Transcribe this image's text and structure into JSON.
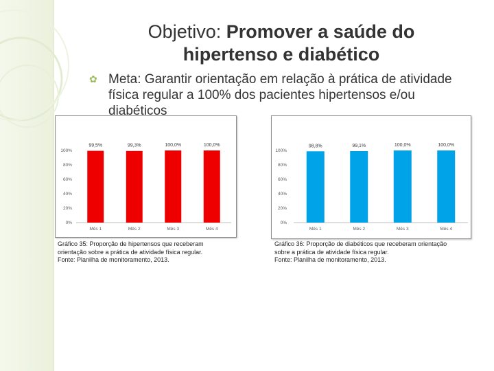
{
  "slide": {
    "title_lead": "Objetivo: ",
    "title_bold_1": "Promover a saúde do",
    "title_bold_2": "hipertenso e diabético",
    "bullet_line_1": "Meta: Garantir orientação em relação à prática de atividade",
    "bullet_line_2": "física regular a 100% dos pacientes hipertensos e/ou",
    "bullet_line_3": "diabéticos"
  },
  "captions": [
    {
      "line_1": "Gráfico 35: Proporção de hipertensos que receberam",
      "line_2": "orientação sobre a prática de atividade física regular.",
      "line_3": "Fonte: Planilha de monitoramento, 2013."
    },
    {
      "line_1": "Gráfico 36: Proporção de diabéticos que receberam orientação",
      "line_2": "sobre a prática de atividade física regular.",
      "line_3": "Fonte: Planilha de monitoramento, 2013."
    }
  ],
  "colors": {
    "accent": "#9bbb59",
    "bar_red": "#ee0000",
    "bar_blue": "#00a2e8"
  },
  "chart_data": [
    {
      "type": "bar",
      "categories": [
        "Mês 1",
        "Mês 2",
        "Mês 3",
        "Mês 4"
      ],
      "values": [
        99.5,
        99.3,
        100.0,
        100.0
      ],
      "data_labels": [
        "99,5%",
        "99,3%",
        "100,0%",
        "100,0%"
      ],
      "yticks": [
        "0%",
        "20%",
        "40%",
        "60%",
        "80%",
        "100%"
      ],
      "ylim": [
        0,
        100
      ],
      "grid": false,
      "legend": "none",
      "color": "#ee0000"
    },
    {
      "type": "bar",
      "categories": [
        "Mês 1",
        "Mês 2",
        "Mês 3",
        "Mês 4"
      ],
      "values": [
        98.8,
        99.1,
        100.0,
        100.0
      ],
      "data_labels": [
        "98,8%",
        "99,1%",
        "100,0%",
        "100,0%"
      ],
      "yticks": [
        "0%",
        "20%",
        "40%",
        "60%",
        "80%",
        "100%"
      ],
      "ylim": [
        0,
        100
      ],
      "grid": false,
      "legend": "none",
      "color": "#00a2e8"
    }
  ]
}
